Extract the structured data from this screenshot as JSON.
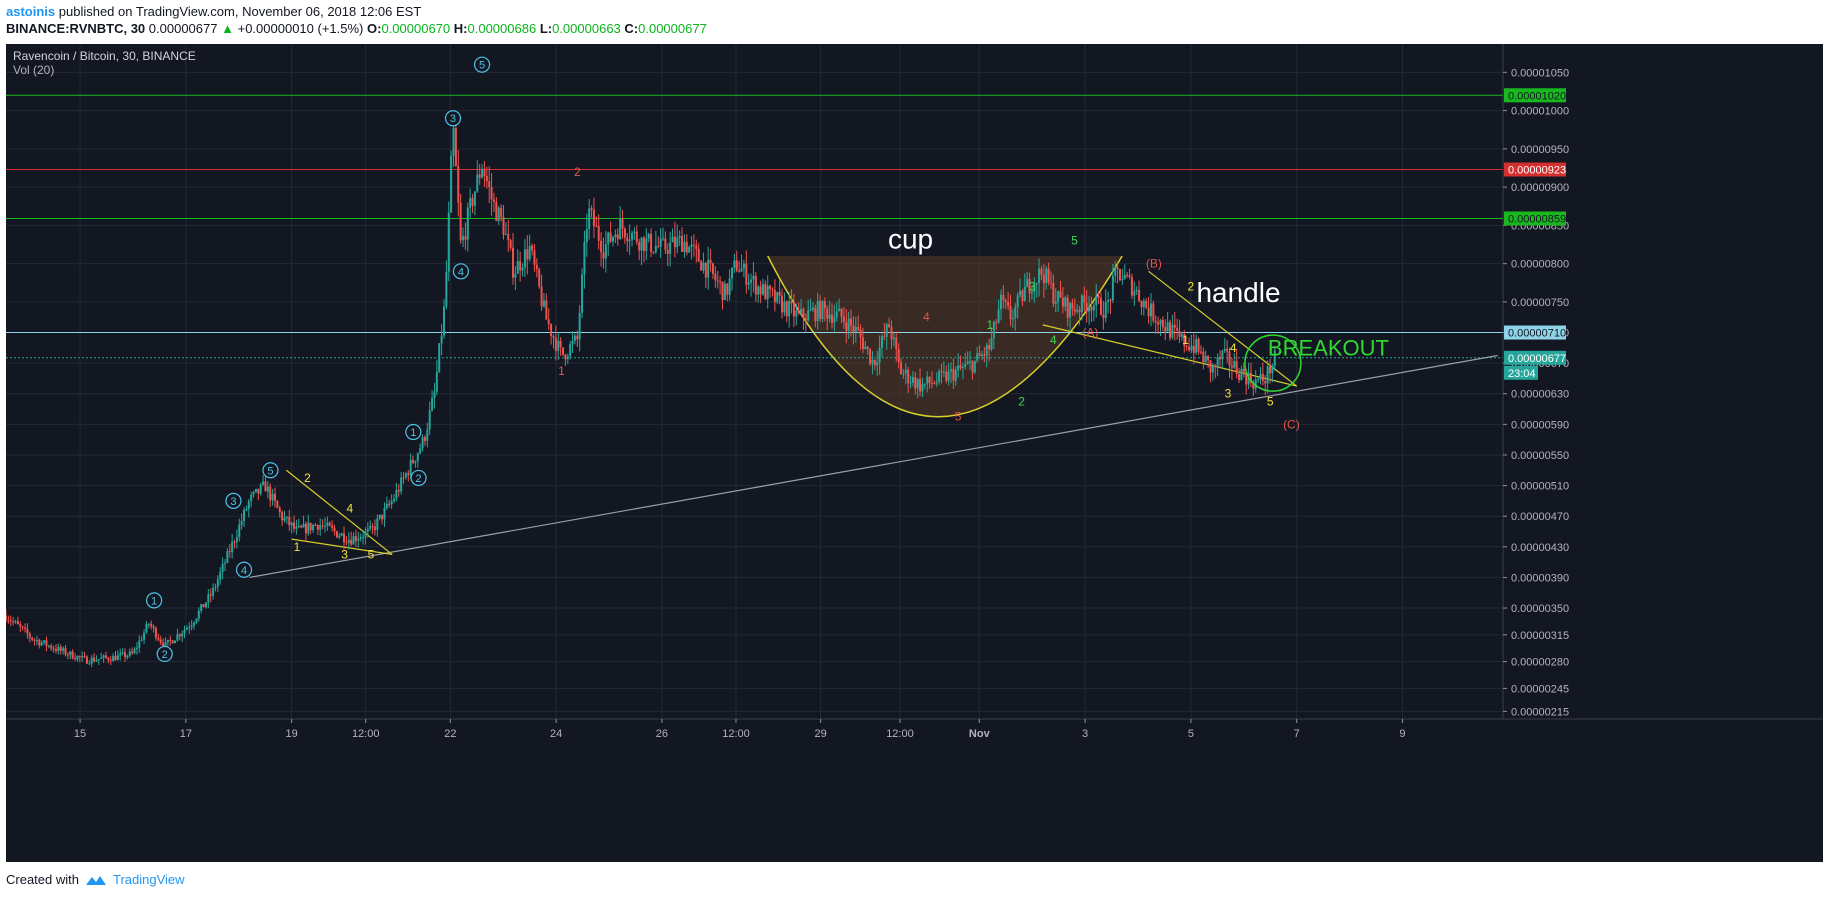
{
  "header": {
    "author": "astoinis",
    "published": "published on TradingView.com, November 06, 2018 12:06 EST",
    "symbol": "BINANCE:RVNBTC, 30",
    "last": "0.00000677",
    "change": "+0.00000010 (+1.5%)",
    "o_label": "O:",
    "o_value": "0.00000670",
    "h_label": "H:",
    "h_value": "0.00000686",
    "l_label": "L:",
    "l_value": "0.00000663",
    "c_label": "C:",
    "c_value": "0.00000677"
  },
  "footer": {
    "created_with": "Created with",
    "brand": "TradingView"
  },
  "chart_data": {
    "type": "candlestick",
    "title": "Ravencoin / Bitcoin, 30, BINANCE",
    "indicator": "Vol (20)",
    "ylim": [
      2.05e-06,
      1.087e-05
    ],
    "y_ticks": [
      "0.00001050",
      "0.00001000",
      "0.00000950",
      "0.00000900",
      "0.00000850",
      "0.00000800",
      "0.00000750",
      "0.00000710",
      "0.00000670",
      "0.00000630",
      "0.00000590",
      "0.00000550",
      "0.00000510",
      "0.00000470",
      "0.00000430",
      "0.00000390",
      "0.00000350",
      "0.00000315",
      "0.00000280",
      "0.00000245",
      "0.00000215"
    ],
    "x_ticks": [
      {
        "label": "15",
        "t": 1.4
      },
      {
        "label": "17",
        "t": 3.4
      },
      {
        "label": "19",
        "t": 5.4
      },
      {
        "label": "12:00",
        "t": 6.8
      },
      {
        "label": "22",
        "t": 8.4
      },
      {
        "label": "24",
        "t": 10.4
      },
      {
        "label": "26",
        "t": 12.4
      },
      {
        "label": "12:00",
        "t": 13.8
      },
      {
        "label": "29",
        "t": 15.4
      },
      {
        "label": "12:00",
        "t": 16.9
      },
      {
        "label": "Nov",
        "t": 18.4
      },
      {
        "label": "3",
        "t": 20.4
      },
      {
        "label": "5",
        "t": 22.4
      },
      {
        "label": "7",
        "t": 24.4
      },
      {
        "label": "9",
        "t": 26.4
      }
    ],
    "trend_path": [
      [
        0,
        3.4e-06
      ],
      [
        0.5,
        3.1e-06
      ],
      [
        1,
        2.95e-06
      ],
      [
        1.5,
        2.82e-06
      ],
      [
        2,
        2.85e-06
      ],
      [
        2.4,
        2.9e-06
      ],
      [
        2.7,
        3.3e-06
      ],
      [
        3,
        3e-06
      ],
      [
        3.5,
        3.3e-06
      ],
      [
        3.9,
        3.7e-06
      ],
      [
        4.2,
        4.2e-06
      ],
      [
        4.6,
        4.9e-06
      ],
      [
        4.9,
        5.1e-06
      ],
      [
        5.2,
        4.7e-06
      ],
      [
        5.5,
        4.5e-06
      ],
      [
        5.9,
        4.6e-06
      ],
      [
        6.5,
        4.4e-06
      ],
      [
        6.9,
        4.5e-06
      ],
      [
        7.3,
        4.9e-06
      ],
      [
        7.6,
        5.3e-06
      ],
      [
        7.9,
        5.7e-06
      ],
      [
        8.1,
        6.3e-06
      ],
      [
        8.3,
        7.5e-06
      ],
      [
        8.45,
        9.8e-06
      ],
      [
        8.6,
        8.2e-06
      ],
      [
        8.8,
        8.8e-06
      ],
      [
        9.0,
        9.3e-06
      ],
      [
        9.2,
        8.8e-06
      ],
      [
        9.4,
        8.5e-06
      ],
      [
        9.6,
        7.9e-06
      ],
      [
        9.9,
        8.2e-06
      ],
      [
        10.2,
        7.3e-06
      ],
      [
        10.5,
        6.8e-06
      ],
      [
        10.8,
        7e-06
      ],
      [
        11.0,
        8.7e-06
      ],
      [
        11.3,
        8.2e-06
      ],
      [
        11.6,
        8.5e-06
      ],
      [
        12.0,
        8.3e-06
      ],
      [
        12.4,
        8.2e-06
      ],
      [
        12.8,
        8.3e-06
      ],
      [
        13.3,
        7.9e-06
      ],
      [
        13.6,
        7.6e-06
      ],
      [
        13.8,
        8e-06
      ],
      [
        14.2,
        7.7e-06
      ],
      [
        14.6,
        7.5e-06
      ],
      [
        15.0,
        7.3e-06
      ],
      [
        15.4,
        7.4e-06
      ],
      [
        15.8,
        7.3e-06
      ],
      [
        16.1,
        7.1e-06
      ],
      [
        16.4,
        6.7e-06
      ],
      [
        16.7,
        7.2e-06
      ],
      [
        16.9,
        6.6e-06
      ],
      [
        17.3,
        6.4e-06
      ],
      [
        17.7,
        6.5e-06
      ],
      [
        18.0,
        6.6e-06
      ],
      [
        18.3,
        6.7e-06
      ],
      [
        18.6,
        6.9e-06
      ],
      [
        18.8,
        7.5e-06
      ],
      [
        19.0,
        7.3e-06
      ],
      [
        19.3,
        7.7e-06
      ],
      [
        19.6,
        7.9e-06
      ],
      [
        19.8,
        7.6e-06
      ],
      [
        20.1,
        7.4e-06
      ],
      [
        20.5,
        7.5e-06
      ],
      [
        20.8,
        7.4e-06
      ],
      [
        21.0,
        7.9e-06
      ],
      [
        21.3,
        7.7e-06
      ],
      [
        21.6,
        7.4e-06
      ],
      [
        21.9,
        7.2e-06
      ],
      [
        22.2,
        7e-06
      ],
      [
        22.5,
        6.9e-06
      ],
      [
        22.8,
        6.6e-06
      ],
      [
        23.0,
        6.8e-06
      ],
      [
        23.3,
        6.6e-06
      ],
      [
        23.6,
        6.45e-06
      ],
      [
        23.8,
        6.5e-06
      ],
      [
        24.0,
        6.77e-06
      ]
    ],
    "horizontal_levels": [
      {
        "label": "0.00001020",
        "value": 1.02e-05,
        "color": "#19b81f",
        "text_color": "#131722"
      },
      {
        "label": "0.00000923",
        "value": 9.23e-06,
        "color": "#d32f2f",
        "text_color": "#ffffff"
      },
      {
        "label": "0.00000859",
        "value": 8.59e-06,
        "color": "#19b81f",
        "text_color": "#131722"
      },
      {
        "label": "0.00000710",
        "value": 7.1e-06,
        "color": "#8fd3e8",
        "text_color": "#131722"
      }
    ],
    "last_price": {
      "label": "0.00000677",
      "value": 6.77e-06,
      "color": "#26a69a",
      "countdown": "23:04"
    },
    "annotations": [
      {
        "text": "cup",
        "t": 17.1,
        "v": 8.2e-06,
        "color": "#ffffff",
        "size": 28
      },
      {
        "text": "handle",
        "t": 23.3,
        "v": 7.5e-06,
        "color": "#ffffff",
        "size": 28
      },
      {
        "text": "BREAKOUT",
        "t": 25.0,
        "v": 6.8e-06,
        "color": "#2fd92f",
        "size": 22
      }
    ],
    "wave_labels": [
      {
        "text": "1",
        "t": 2.8,
        "v": 3.6e-06,
        "style": "circle"
      },
      {
        "text": "2",
        "t": 3.0,
        "v": 2.9e-06,
        "style": "circle"
      },
      {
        "text": "3",
        "t": 4.3,
        "v": 4.9e-06,
        "style": "circle"
      },
      {
        "text": "4",
        "t": 4.5,
        "v": 4e-06,
        "style": "circle"
      },
      {
        "text": "5",
        "t": 5.0,
        "v": 5.3e-06,
        "style": "circle"
      },
      {
        "text": "1",
        "t": 7.7,
        "v": 5.8e-06,
        "style": "circle"
      },
      {
        "text": "2",
        "t": 7.8,
        "v": 5.2e-06,
        "style": "circle"
      },
      {
        "text": "3",
        "t": 8.45,
        "v": 9.9e-06,
        "style": "circle"
      },
      {
        "text": "4",
        "t": 8.6,
        "v": 7.9e-06,
        "style": "circle"
      },
      {
        "text": "5",
        "t": 9.0,
        "v": 1.06e-05,
        "style": "circle"
      },
      {
        "text": "1",
        "t": 5.5,
        "v": 4.3e-06,
        "style": "yellow"
      },
      {
        "text": "2",
        "t": 5.7,
        "v": 5.2e-06,
        "style": "yellow"
      },
      {
        "text": "3",
        "t": 6.4,
        "v": 4.2e-06,
        "style": "yellow"
      },
      {
        "text": "4",
        "t": 6.5,
        "v": 4.8e-06,
        "style": "yellow"
      },
      {
        "text": "5",
        "t": 6.9,
        "v": 4.2e-06,
        "style": "yellow"
      },
      {
        "text": "1",
        "t": 10.5,
        "v": 6.6e-06,
        "style": "red"
      },
      {
        "text": "2",
        "t": 10.8,
        "v": 9.2e-06,
        "style": "red"
      },
      {
        "text": "4",
        "t": 17.4,
        "v": 7.3e-06,
        "style": "red"
      },
      {
        "text": "5",
        "t": 18.0,
        "v": 6e-06,
        "style": "red"
      },
      {
        "text": "1",
        "t": 18.6,
        "v": 7.2e-06,
        "style": "green"
      },
      {
        "text": "2",
        "t": 19.2,
        "v": 6.2e-06,
        "style": "green"
      },
      {
        "text": "3",
        "t": 19.4,
        "v": 7.7e-06,
        "style": "green"
      },
      {
        "text": "4",
        "t": 19.8,
        "v": 7e-06,
        "style": "green"
      },
      {
        "text": "5",
        "t": 20.2,
        "v": 8.3e-06,
        "style": "green"
      },
      {
        "text": "(A)",
        "t": 20.5,
        "v": 7.1e-06,
        "style": "red"
      },
      {
        "text": "(B)",
        "t": 21.7,
        "v": 8e-06,
        "style": "red"
      },
      {
        "text": "(C)",
        "t": 24.3,
        "v": 5.9e-06,
        "style": "red"
      },
      {
        "text": "1",
        "t": 22.3,
        "v": 7e-06,
        "style": "yellow"
      },
      {
        "text": "2",
        "t": 22.4,
        "v": 7.7e-06,
        "style": "yellow"
      },
      {
        "text": "3",
        "t": 23.1,
        "v": 6.3e-06,
        "style": "yellow"
      },
      {
        "text": "4",
        "t": 23.2,
        "v": 6.9e-06,
        "style": "yellow"
      },
      {
        "text": "5",
        "t": 23.9,
        "v": 6.2e-06,
        "style": "yellow"
      }
    ],
    "trendlines": [
      {
        "name": "long-support",
        "from": [
          4.6,
          3.9e-06
        ],
        "to": [
          28.2,
          6.8e-06
        ],
        "color": "#9aa0ab"
      },
      {
        "name": "tri1-top",
        "from": [
          5.3,
          5.3e-06
        ],
        "to": [
          7.3,
          4.2e-06
        ],
        "color": "#d6cf2a"
      },
      {
        "name": "tri1-bottom",
        "from": [
          5.4,
          4.4e-06
        ],
        "to": [
          7.3,
          4.2e-06
        ],
        "color": "#d6cf2a"
      },
      {
        "name": "handle-top",
        "from": [
          21.6,
          7.9e-06
        ],
        "to": [
          24.4,
          6.4e-06
        ],
        "color": "#d6cf2a"
      },
      {
        "name": "handle-bottom",
        "from": [
          19.6,
          7.2e-06
        ],
        "to": [
          24.4,
          6.4e-06
        ],
        "color": "#d6cf2a"
      }
    ],
    "cup": {
      "left": [
        14.4,
        8.1e-06
      ],
      "bottom": [
        17.5,
        6e-06
      ],
      "right": [
        21.1,
        8.1e-06
      ],
      "color": "#d6cf2a",
      "fill": "#5a3d27"
    },
    "breakout_circle": {
      "t": 23.95,
      "v": 6.7e-06,
      "color": "#2fd92f"
    }
  }
}
